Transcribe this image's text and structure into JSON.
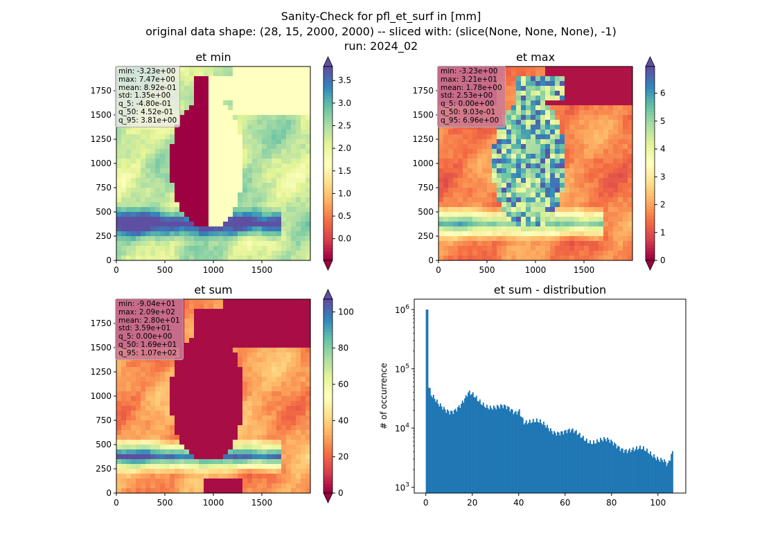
{
  "figure": {
    "title_lines": [
      "Sanity-Check for pfl_et_surf in [mm]",
      "original data shape: (28, 15, 2000, 2000) -- sliced with: (slice(None, None, None), -1)",
      "run: 2024_02"
    ]
  },
  "chart_data": [
    {
      "type": "heatmap",
      "title": "et min",
      "xlim": [
        0,
        2000
      ],
      "ylim": [
        0,
        2000
      ],
      "x_ticks": [
        0,
        500,
        1000,
        1500
      ],
      "y_ticks": [
        0,
        250,
        500,
        750,
        1000,
        1250,
        1500,
        1750
      ],
      "colormap": "Spectral",
      "colorbar": {
        "ticks": [
          0.0,
          0.5,
          1.0,
          1.5,
          2.0,
          2.5,
          3.0,
          3.5
        ],
        "tick_labels": [
          "0.0",
          "0.5",
          "1.0",
          "1.5",
          "2.0",
          "2.5",
          "3.0",
          "3.5"
        ],
        "range": [
          -0.48,
          3.81
        ],
        "extend": "both"
      },
      "stats": [
        "min: -3.23e+00",
        "max: 7.47e+00",
        "mean: 8.92e-01",
        "std: 1.35e+00",
        "q_5: -4.80e-01",
        "q_50: 4.52e-01",
        "q_95: 3.81e+00"
      ]
    },
    {
      "type": "heatmap",
      "title": "et max",
      "xlim": [
        0,
        2000
      ],
      "ylim": [
        0,
        2000
      ],
      "x_ticks": [
        0,
        500,
        1000,
        1500
      ],
      "y_ticks": [
        0,
        250,
        500,
        750,
        1000,
        1250,
        1500,
        1750
      ],
      "colormap": "Spectral",
      "colorbar": {
        "ticks": [
          0,
          1,
          2,
          3,
          4,
          5,
          6
        ],
        "tick_labels": [
          "0",
          "1",
          "2",
          "3",
          "4",
          "5",
          "6"
        ],
        "range": [
          0,
          6.96
        ],
        "extend": "both"
      },
      "stats": [
        "min: -3.23e+00",
        "max: 3.21e+01",
        "mean: 1.78e+00",
        "std: 2.53e+00",
        "q_5: 0.00e+00",
        "q_50: 9.03e-01",
        "q_95: 6.96e+00"
      ]
    },
    {
      "type": "heatmap",
      "title": "et sum",
      "xlim": [
        0,
        2000
      ],
      "ylim": [
        0,
        2000
      ],
      "x_ticks": [
        0,
        500,
        1000,
        1500
      ],
      "y_ticks": [
        0,
        250,
        500,
        750,
        1000,
        1250,
        1500,
        1750
      ],
      "colormap": "Spectral",
      "colorbar": {
        "ticks": [
          0,
          20,
          40,
          60,
          80,
          100
        ],
        "tick_labels": [
          "0",
          "20",
          "40",
          "60",
          "80",
          "100"
        ],
        "range": [
          0,
          107
        ],
        "extend": "both"
      },
      "stats": [
        "min: -9.04e+01",
        "max: 2.09e+02",
        "mean: 2.80e+01",
        "std: 3.59e+01",
        "q_5: 0.00e+00",
        "q_50: 1.69e+01",
        "q_95: 1.07e+02"
      ]
    },
    {
      "type": "bar",
      "title": "et sum - distribution",
      "ylabel": "# of occurrence",
      "xlabel": "",
      "yscale": "log",
      "xlim": [
        -5,
        112
      ],
      "ylim": [
        800,
        1500000
      ],
      "x_ticks": [
        0,
        20,
        40,
        60,
        80,
        100
      ],
      "y_ticks": [
        1000,
        10000,
        100000,
        1000000
      ],
      "y_tick_labels": [
        [
          "10",
          "3"
        ],
        [
          "10",
          "4"
        ],
        [
          "10",
          "5"
        ],
        [
          "10",
          "6"
        ]
      ],
      "color": "#1f77b4",
      "series": [
        {
          "x": [
            0,
            1,
            2,
            5,
            8,
            10,
            12,
            15,
            17,
            18,
            19,
            20,
            22,
            25,
            28,
            30,
            32,
            35,
            38,
            40,
            42,
            44,
            46,
            48,
            50,
            52,
            55,
            58,
            60,
            63,
            65,
            68,
            70,
            73,
            75,
            78,
            80,
            83,
            85,
            88,
            90,
            93,
            95,
            98,
            100,
            102,
            104,
            106
          ],
          "values": [
            1000000,
            48000,
            33000,
            23000,
            21000,
            21000,
            22000,
            25000,
            30000,
            35000,
            34000,
            33000,
            30000,
            27000,
            24000,
            22000,
            21000,
            20000,
            19000,
            22000,
            14000,
            13000,
            12000,
            11500,
            11000,
            10500,
            9500,
            9000,
            8500,
            8000,
            7500,
            7000,
            6600,
            6200,
            6000,
            5600,
            5300,
            5000,
            4800,
            4500,
            4200,
            4000,
            3800,
            3600,
            3400,
            3200,
            2400,
            3500
          ]
        }
      ]
    }
  ]
}
